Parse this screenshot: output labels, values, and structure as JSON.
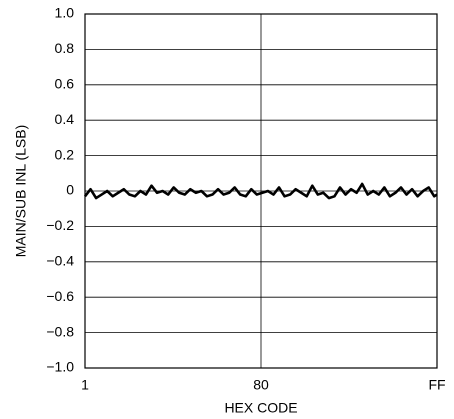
{
  "chart_data": {
    "type": "line",
    "ylabel": "MAIN/SUB INL (LSB)",
    "xlabel": "HEX CODE",
    "xlim": [
      1,
      255
    ],
    "xticks": [
      1,
      {
        "value": 128,
        "label": "80"
      },
      {
        "value": 255,
        "label": "FF"
      }
    ],
    "ylim": [
      -1,
      1
    ],
    "yticks": [
      {
        "value": 1,
        "label": "1.0"
      },
      0.8,
      0.6,
      0.4,
      0.2,
      0,
      {
        "value": -0.2,
        "label": "−0.2"
      },
      {
        "value": -0.4,
        "label": "−0.4"
      },
      {
        "value": -0.6,
        "label": "−0.6"
      },
      {
        "value": -0.8,
        "label": "−0.8"
      },
      {
        "value": -1,
        "label": "−1.0"
      }
    ],
    "grid": true,
    "series": [
      {
        "color": "#000000",
        "x": [
          1,
          5,
          9,
          13,
          17,
          21,
          25,
          29,
          33,
          37,
          41,
          45,
          49,
          53,
          57,
          61,
          65,
          69,
          73,
          77,
          81,
          85,
          89,
          93,
          97,
          101,
          105,
          109,
          113,
          117,
          121,
          125,
          129,
          133,
          137,
          141,
          145,
          149,
          153,
          157,
          161,
          165,
          169,
          173,
          177,
          181,
          185,
          189,
          193,
          197,
          201,
          205,
          209,
          213,
          217,
          221,
          225,
          229,
          233,
          237,
          241,
          245,
          249,
          253,
          255
        ],
        "values": [
          -0.03,
          0.01,
          -0.04,
          -0.02,
          0,
          -0.03,
          -0.01,
          0.01,
          -0.02,
          -0.03,
          0,
          -0.02,
          0.03,
          -0.01,
          0,
          -0.02,
          0.02,
          -0.01,
          -0.02,
          0.01,
          -0.01,
          0,
          -0.03,
          -0.02,
          0.01,
          -0.02,
          -0.01,
          0.02,
          -0.02,
          -0.03,
          0.01,
          -0.02,
          -0.01,
          0,
          -0.02,
          0.02,
          -0.03,
          -0.02,
          0.01,
          -0.01,
          -0.03,
          0.03,
          -0.02,
          -0.01,
          -0.04,
          -0.03,
          0.02,
          -0.02,
          0.01,
          -0.01,
          0.04,
          -0.02,
          0,
          -0.02,
          0.02,
          -0.03,
          -0.01,
          0.02,
          -0.02,
          0.01,
          -0.03,
          0,
          0.02,
          -0.03,
          -0.02
        ]
      }
    ]
  }
}
